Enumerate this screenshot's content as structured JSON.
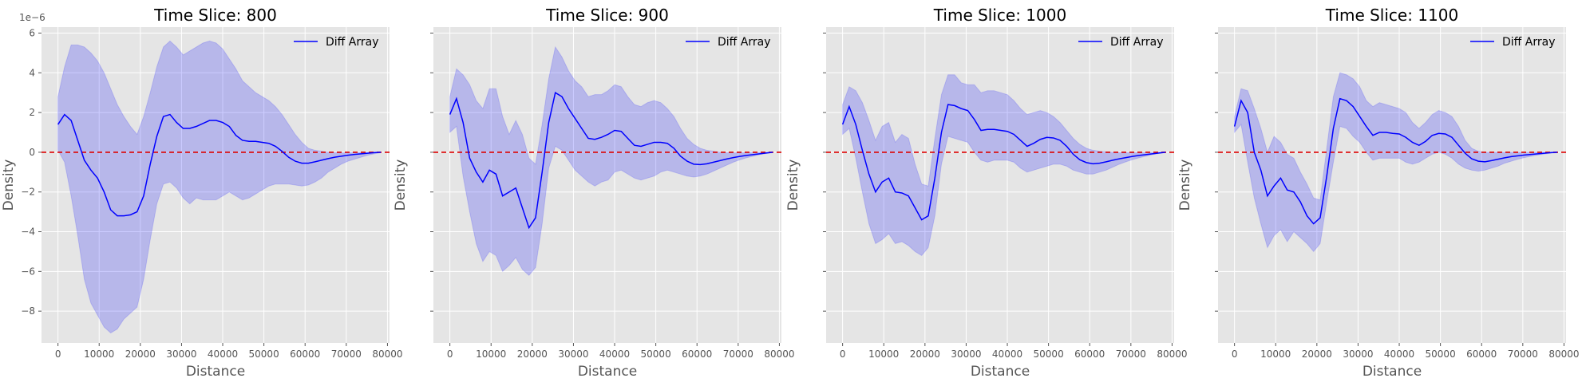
{
  "colors": {
    "axes_bg": "#E5E5E5",
    "grid": "#FFFFFF",
    "line": "#0000FF",
    "band": "#0000FF",
    "zero_line": "#DD0000"
  },
  "chart_data": [
    {
      "type": "line",
      "title": "Time Slice: 800",
      "xlabel": "Distance",
      "ylabel": "Density",
      "y_offset_label": "1e−6",
      "legend": "Diff Array",
      "legend_position": "top-right",
      "xlim": [
        -4000,
        80500
      ],
      "ylim": [
        -9.6,
        6.3
      ],
      "xticks": [
        0,
        10000,
        20000,
        30000,
        40000,
        50000,
        60000,
        70000,
        80000
      ],
      "xtick_labels": [
        "0",
        "10000",
        "20000",
        "30000",
        "40000",
        "50000",
        "60000",
        "70000",
        "80000"
      ],
      "yticks": [
        -8,
        -6,
        -4,
        -2,
        0,
        2,
        4,
        6
      ],
      "ytick_labels": [
        "−8",
        "−6",
        "−4",
        "−2",
        "0",
        "2",
        "4",
        "6"
      ],
      "grid": true,
      "x": [
        0,
        1600,
        3200,
        4800,
        6400,
        8000,
        9600,
        11200,
        12800,
        14400,
        16000,
        17600,
        19200,
        20800,
        22400,
        24000,
        25600,
        27200,
        28800,
        30400,
        32000,
        33600,
        35200,
        36800,
        38400,
        40000,
        41600,
        43200,
        44800,
        46400,
        48000,
        49600,
        51200,
        52800,
        54400,
        56000,
        57600,
        59200,
        60800,
        62400,
        64000,
        65600,
        67200,
        68800,
        70400,
        72000,
        73600,
        75200,
        76800,
        78400
      ],
      "y": [
        1.4,
        1.9,
        1.6,
        0.6,
        -0.4,
        -0.9,
        -1.3,
        -2.0,
        -2.9,
        -3.2,
        -3.2,
        -3.15,
        -3.0,
        -2.2,
        -0.6,
        0.8,
        1.8,
        1.9,
        1.5,
        1.2,
        1.2,
        1.3,
        1.45,
        1.6,
        1.6,
        1.5,
        1.3,
        0.85,
        0.6,
        0.55,
        0.55,
        0.5,
        0.45,
        0.3,
        0.05,
        -0.25,
        -0.45,
        -0.55,
        -0.55,
        -0.48,
        -0.4,
        -0.32,
        -0.25,
        -0.2,
        -0.15,
        -0.11,
        -0.08,
        -0.05,
        -0.02,
        0.0
      ],
      "upper": [
        2.8,
        4.3,
        5.4,
        5.4,
        5.3,
        5.0,
        4.6,
        4.0,
        3.2,
        2.4,
        1.8,
        1.3,
        0.9,
        1.8,
        3.0,
        4.3,
        5.3,
        5.6,
        5.3,
        4.9,
        5.1,
        5.3,
        5.5,
        5.6,
        5.5,
        5.2,
        4.7,
        4.2,
        3.6,
        3.3,
        3.0,
        2.8,
        2.6,
        2.3,
        1.9,
        1.4,
        0.9,
        0.5,
        0.2,
        0.1,
        0.05,
        0.0,
        -0.02,
        -0.03,
        -0.03,
        -0.02,
        -0.02,
        -0.01,
        0.0,
        0.0
      ],
      "lower": [
        0.1,
        -0.5,
        -2.2,
        -4.2,
        -6.4,
        -7.6,
        -8.2,
        -8.8,
        -9.1,
        -8.9,
        -8.4,
        -8.1,
        -7.8,
        -6.4,
        -4.4,
        -2.6,
        -1.6,
        -1.5,
        -1.8,
        -2.3,
        -2.6,
        -2.3,
        -2.4,
        -2.4,
        -2.4,
        -2.2,
        -2.0,
        -2.2,
        -2.4,
        -2.3,
        -2.1,
        -1.9,
        -1.7,
        -1.6,
        -1.6,
        -1.6,
        -1.65,
        -1.7,
        -1.65,
        -1.5,
        -1.3,
        -1.0,
        -0.8,
        -0.6,
        -0.45,
        -0.35,
        -0.25,
        -0.15,
        -0.08,
        -0.02
      ]
    },
    {
      "type": "line",
      "title": "Time Slice: 900",
      "xlabel": "Distance",
      "ylabel": "Density",
      "legend": "Diff Array",
      "legend_position": "top-right",
      "xlim": [
        -4000,
        80500
      ],
      "ylim": [
        -9.6,
        6.3
      ],
      "xticks": [
        0,
        10000,
        20000,
        30000,
        40000,
        50000,
        60000,
        70000,
        80000
      ],
      "xtick_labels": [
        "0",
        "10000",
        "20000",
        "30000",
        "40000",
        "50000",
        "60000",
        "70000",
        "80000"
      ],
      "yticks": [
        -8,
        -6,
        -4,
        -2,
        0,
        2,
        4,
        6
      ],
      "grid": true,
      "x": [
        0,
        1600,
        3200,
        4800,
        6400,
        8000,
        9600,
        11200,
        12800,
        14400,
        16000,
        17600,
        19200,
        20800,
        22400,
        24000,
        25600,
        27200,
        28800,
        30400,
        32000,
        33600,
        35200,
        36800,
        38400,
        40000,
        41600,
        43200,
        44800,
        46400,
        48000,
        49600,
        51200,
        52800,
        54400,
        56000,
        57600,
        59200,
        60800,
        62400,
        64000,
        65600,
        67200,
        68800,
        70400,
        72000,
        73600,
        75200,
        76800,
        78400
      ],
      "y": [
        1.9,
        2.7,
        1.5,
        -0.3,
        -1.0,
        -1.5,
        -0.9,
        -1.1,
        -2.2,
        -2.0,
        -1.8,
        -2.8,
        -3.8,
        -3.3,
        -1.0,
        1.5,
        3.0,
        2.8,
        2.2,
        1.7,
        1.2,
        0.7,
        0.65,
        0.75,
        0.9,
        1.1,
        1.05,
        0.7,
        0.35,
        0.3,
        0.4,
        0.5,
        0.5,
        0.45,
        0.2,
        -0.2,
        -0.45,
        -0.6,
        -0.62,
        -0.58,
        -0.5,
        -0.42,
        -0.34,
        -0.27,
        -0.21,
        -0.16,
        -0.12,
        -0.08,
        -0.04,
        0.0
      ],
      "upper": [
        2.8,
        4.2,
        3.9,
        3.4,
        2.6,
        2.2,
        3.2,
        3.2,
        1.8,
        0.9,
        1.6,
        0.9,
        -0.3,
        -0.6,
        1.4,
        3.7,
        5.3,
        4.8,
        4.1,
        3.6,
        3.3,
        2.8,
        2.9,
        2.9,
        3.1,
        3.4,
        3.3,
        2.8,
        2.4,
        2.3,
        2.5,
        2.6,
        2.5,
        2.2,
        1.8,
        1.2,
        0.7,
        0.4,
        0.2,
        0.1,
        0.05,
        0.0,
        -0.02,
        -0.03,
        -0.03,
        -0.02,
        -0.02,
        -0.01,
        0.0,
        0.0
      ],
      "lower": [
        1.0,
        1.3,
        -1.2,
        -3.0,
        -4.6,
        -5.5,
        -5.0,
        -5.2,
        -6.0,
        -5.7,
        -5.3,
        -5.9,
        -6.2,
        -5.8,
        -3.6,
        -0.8,
        0.3,
        0.1,
        -0.4,
        -0.9,
        -1.2,
        -1.5,
        -1.7,
        -1.5,
        -1.4,
        -1.0,
        -0.9,
        -1.1,
        -1.3,
        -1.4,
        -1.3,
        -1.2,
        -1.0,
        -0.9,
        -1.0,
        -1.1,
        -1.2,
        -1.25,
        -1.2,
        -1.1,
        -0.95,
        -0.8,
        -0.65,
        -0.5,
        -0.38,
        -0.28,
        -0.2,
        -0.12,
        -0.06,
        -0.02
      ]
    },
    {
      "type": "line",
      "title": "Time Slice: 1000",
      "xlabel": "Distance",
      "ylabel": "Density",
      "legend": "Diff Array",
      "legend_position": "top-right",
      "xlim": [
        -4000,
        80500
      ],
      "ylim": [
        -9.6,
        6.3
      ],
      "xticks": [
        0,
        10000,
        20000,
        30000,
        40000,
        50000,
        60000,
        70000,
        80000
      ],
      "xtick_labels": [
        "0",
        "10000",
        "20000",
        "30000",
        "40000",
        "50000",
        "60000",
        "70000",
        "80000"
      ],
      "yticks": [
        -8,
        -6,
        -4,
        -2,
        0,
        2,
        4,
        6
      ],
      "grid": true,
      "x": [
        0,
        1600,
        3200,
        4800,
        6400,
        8000,
        9600,
        11200,
        12800,
        14400,
        16000,
        17600,
        19200,
        20800,
        22400,
        24000,
        25600,
        27200,
        28800,
        30400,
        32000,
        33600,
        35200,
        36800,
        38400,
        40000,
        41600,
        43200,
        44800,
        46400,
        48000,
        49600,
        51200,
        52800,
        54400,
        56000,
        57600,
        59200,
        60800,
        62400,
        64000,
        65600,
        67200,
        68800,
        70400,
        72000,
        73600,
        75200,
        76800,
        78400
      ],
      "y": [
        1.4,
        2.3,
        1.4,
        0.1,
        -1.1,
        -2.0,
        -1.5,
        -1.3,
        -2.0,
        -2.05,
        -2.2,
        -2.8,
        -3.4,
        -3.2,
        -1.3,
        1.0,
        2.4,
        2.35,
        2.2,
        2.1,
        1.65,
        1.1,
        1.15,
        1.15,
        1.1,
        1.05,
        0.9,
        0.6,
        0.3,
        0.45,
        0.65,
        0.75,
        0.72,
        0.6,
        0.3,
        -0.1,
        -0.38,
        -0.52,
        -0.58,
        -0.55,
        -0.48,
        -0.4,
        -0.33,
        -0.27,
        -0.21,
        -0.16,
        -0.12,
        -0.08,
        -0.04,
        0.0
      ],
      "upper": [
        2.4,
        3.3,
        3.1,
        2.5,
        1.6,
        0.6,
        1.3,
        1.5,
        0.5,
        0.9,
        0.7,
        -0.6,
        -1.6,
        -1.7,
        0.7,
        2.9,
        3.9,
        3.9,
        3.5,
        3.4,
        3.4,
        3.0,
        3.1,
        3.1,
        3.0,
        2.9,
        2.6,
        2.2,
        1.9,
        2.0,
        2.1,
        2.0,
        1.8,
        1.5,
        1.1,
        0.7,
        0.4,
        0.2,
        0.1,
        0.05,
        0.02,
        0.0,
        -0.02,
        -0.02,
        -0.02,
        -0.02,
        -0.01,
        -0.01,
        0.0,
        0.0
      ],
      "lower": [
        0.9,
        1.2,
        -0.3,
        -2.0,
        -3.6,
        -4.6,
        -4.4,
        -4.1,
        -4.6,
        -4.5,
        -4.7,
        -5.0,
        -5.2,
        -4.8,
        -3.2,
        -0.6,
        0.8,
        0.7,
        0.6,
        0.5,
        0.0,
        -0.4,
        -0.5,
        -0.4,
        -0.4,
        -0.4,
        -0.5,
        -0.8,
        -1.0,
        -0.9,
        -0.8,
        -0.7,
        -0.6,
        -0.6,
        -0.7,
        -0.9,
        -1.0,
        -1.1,
        -1.1,
        -1.0,
        -0.9,
        -0.75,
        -0.6,
        -0.48,
        -0.37,
        -0.28,
        -0.2,
        -0.12,
        -0.06,
        -0.02
      ]
    },
    {
      "type": "line",
      "title": "Time Slice: 1100",
      "xlabel": "Distance",
      "ylabel": "Density",
      "legend": "Diff Array",
      "legend_position": "top-right",
      "xlim": [
        -4000,
        80500
      ],
      "ylim": [
        -9.6,
        6.3
      ],
      "xticks": [
        0,
        10000,
        20000,
        30000,
        40000,
        50000,
        60000,
        70000,
        80000
      ],
      "xtick_labels": [
        "0",
        "10000",
        "20000",
        "30000",
        "40000",
        "50000",
        "60000",
        "70000",
        "80000"
      ],
      "yticks": [
        -8,
        -6,
        -4,
        -2,
        0,
        2,
        4,
        6
      ],
      "grid": true,
      "x": [
        0,
        1600,
        3200,
        4800,
        6400,
        8000,
        9600,
        11200,
        12800,
        14400,
        16000,
        17600,
        19200,
        20800,
        22400,
        24000,
        25600,
        27200,
        28800,
        30400,
        32000,
        33600,
        35200,
        36800,
        38400,
        40000,
        41600,
        43200,
        44800,
        46400,
        48000,
        49600,
        51200,
        52800,
        54400,
        56000,
        57600,
        59200,
        60800,
        62400,
        64000,
        65600,
        67200,
        68800,
        70400,
        72000,
        73600,
        75200,
        76800,
        78400
      ],
      "y": [
        1.3,
        2.6,
        2.0,
        0.0,
        -0.9,
        -2.2,
        -1.7,
        -1.3,
        -1.9,
        -2.0,
        -2.5,
        -3.2,
        -3.6,
        -3.3,
        -1.2,
        1.2,
        2.7,
        2.6,
        2.3,
        1.8,
        1.3,
        0.85,
        1.0,
        1.0,
        0.95,
        0.92,
        0.75,
        0.5,
        0.35,
        0.55,
        0.85,
        0.95,
        0.92,
        0.75,
        0.35,
        -0.05,
        -0.33,
        -0.45,
        -0.48,
        -0.42,
        -0.35,
        -0.28,
        -0.22,
        -0.18,
        -0.14,
        -0.11,
        -0.08,
        -0.05,
        -0.02,
        0.0
      ],
      "upper": [
        1.8,
        3.2,
        3.1,
        2.2,
        1.2,
        0.0,
        0.8,
        0.5,
        -0.1,
        -0.3,
        -1.0,
        -1.6,
        -2.3,
        -2.4,
        0.2,
        2.8,
        4.0,
        3.9,
        3.7,
        3.3,
        2.6,
        2.3,
        2.5,
        2.4,
        2.3,
        2.2,
        2.0,
        1.5,
        1.2,
        1.5,
        1.9,
        2.1,
        2.0,
        1.8,
        1.3,
        0.6,
        0.2,
        0.05,
        0.0,
        0.0,
        0.0,
        0.0,
        0.0,
        0.0,
        0.0,
        0.0,
        0.0,
        0.0,
        0.0,
        0.0
      ],
      "lower": [
        1.0,
        1.4,
        -0.5,
        -2.3,
        -3.6,
        -4.8,
        -4.2,
        -3.9,
        -4.5,
        -4.0,
        -4.3,
        -4.6,
        -5.0,
        -4.6,
        -2.5,
        -0.5,
        1.3,
        1.2,
        0.8,
        0.5,
        0.0,
        -0.4,
        -0.3,
        -0.3,
        -0.3,
        -0.3,
        -0.5,
        -0.6,
        -0.5,
        -0.3,
        -0.1,
        0.0,
        -0.1,
        -0.3,
        -0.6,
        -0.8,
        -0.9,
        -0.95,
        -0.9,
        -0.8,
        -0.7,
        -0.55,
        -0.45,
        -0.35,
        -0.27,
        -0.2,
        -0.14,
        -0.09,
        -0.05,
        -0.02
      ]
    }
  ]
}
